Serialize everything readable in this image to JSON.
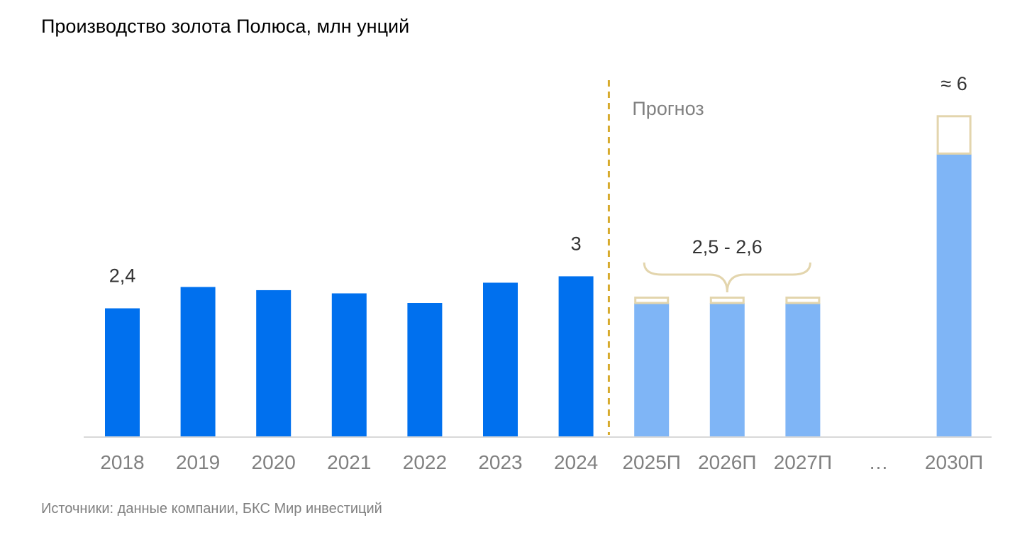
{
  "chart_data": {
    "type": "bar",
    "title": "Производство золота Полюса, млн унций",
    "categories": [
      "2018",
      "2019",
      "2020",
      "2021",
      "2022",
      "2023",
      "2024",
      "2025П",
      "2026П",
      "2027П",
      "…",
      "2030П"
    ],
    "series": [
      {
        "values": [
          2.4,
          2.8,
          2.74,
          2.68,
          2.5,
          2.88,
          3.0,
          null,
          null,
          null,
          null,
          null
        ]
      },
      {
        "values": [
          null,
          null,
          null,
          null,
          null,
          null,
          null,
          2.5,
          2.5,
          2.5,
          null,
          5.3
        ]
      }
    ],
    "ranges": [
      {
        "category": "2025П",
        "low": 2.5,
        "high": 2.6
      },
      {
        "category": "2026П",
        "low": 2.5,
        "high": 2.6
      },
      {
        "category": "2027П",
        "low": 2.5,
        "high": 2.6
      },
      {
        "category": "2030П",
        "low": 5.3,
        "high": 6.0
      }
    ],
    "data_labels": [
      {
        "category": "2018",
        "text": "2,4"
      },
      {
        "category": "2024",
        "text": "3"
      },
      {
        "category": "2030П",
        "text": "≈ 6"
      }
    ],
    "range_label": "2,5 - 2,6",
    "forecast_label": "Прогноз",
    "ylim": [
      0,
      6.7
    ],
    "grid": false,
    "legend": "none",
    "colors": {
      "actual": "#0070ee",
      "forecast": "#7fb5f6",
      "range_outline": "#e3d5ad",
      "divider": "#d7aa2c",
      "tick_text": "#808080",
      "label_text": "#333333",
      "baseline": "#d9d9d9"
    }
  },
  "source": "Источники: данные компании, БКС Мир инвестиций"
}
